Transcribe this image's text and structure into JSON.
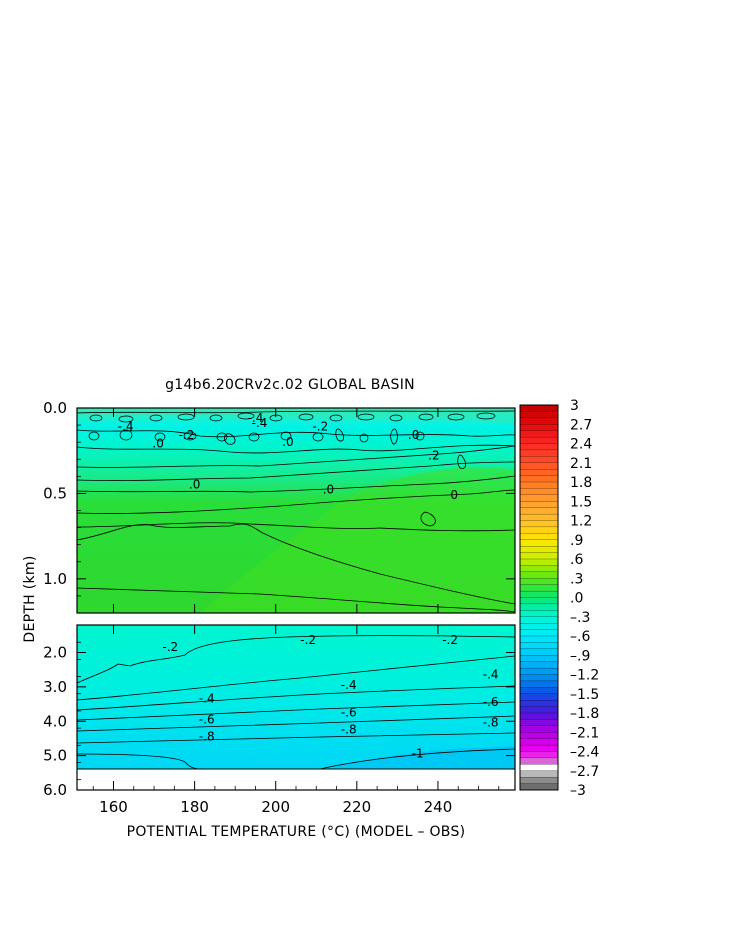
{
  "chart_data": {
    "type": "heatmap",
    "title": "g14b6.20CRv2c.02 GLOBAL BASIN",
    "xlabel": "POTENTIAL TEMPERATURE (°C) (MODEL – OBS)",
    "ylabel": "DEPTH (km)",
    "xlim": [
      151,
      259
    ],
    "x_ticks": [
      "160",
      "180",
      "200",
      "220",
      "240"
    ],
    "x_tick_values": [
      160,
      180,
      200,
      220,
      240
    ],
    "upper_panel": {
      "ylim": [
        0.0,
        1.2
      ],
      "y_ticks": [
        "0.0",
        "0.5",
        "1.0"
      ],
      "y_tick_values": [
        0.0,
        0.5,
        1.0
      ]
    },
    "lower_panel": {
      "ylim": [
        1.2,
        6.0
      ],
      "y_ticks": [
        "2.0",
        "3.0",
        "4.0",
        "5.0",
        "6.0"
      ],
      "y_tick_values": [
        2.0,
        3.0,
        4.0,
        5.0,
        6.0
      ]
    },
    "colorbar": {
      "min": -3,
      "max": 3,
      "interval": 0.1,
      "labels": [
        "3",
        "2.7",
        "2.4",
        "2.1",
        "1.8",
        "1.5",
        "1.2",
        ".9",
        ".6",
        ".3",
        ".0",
        "–.3",
        "–.6",
        "–.9",
        "–1.2",
        "–1.5",
        "–1.8",
        "–2.1",
        "–2.4",
        "–2.7",
        "–3"
      ],
      "label_values": [
        3,
        2.7,
        2.4,
        2.1,
        1.8,
        1.5,
        1.2,
        0.9,
        0.6,
        0.3,
        0.0,
        -0.3,
        -0.6,
        -0.9,
        -1.2,
        -1.5,
        -1.8,
        -2.1,
        -2.4,
        -2.7,
        -3
      ]
    },
    "contour_labels": [
      {
        "text": "-.4",
        "x": 195,
        "y": 0.07
      },
      {
        "text": "-.4",
        "x": 163,
        "y": 0.12
      },
      {
        "text": "-.4",
        "x": 196,
        "y": 0.1
      },
      {
        "text": "-.2",
        "x": 211,
        "y": 0.12
      },
      {
        "text": "-.2",
        "x": 178,
        "y": 0.17
      },
      {
        "text": ".0",
        "x": 171,
        "y": 0.22
      },
      {
        "text": ".0",
        "x": 203,
        "y": 0.21
      },
      {
        "text": ".0",
        "x": 234,
        "y": 0.17
      },
      {
        "text": ".2",
        "x": 239,
        "y": 0.29
      },
      {
        "text": ".0",
        "x": 180,
        "y": 0.46
      },
      {
        "text": ".0",
        "x": 213,
        "y": 0.49
      },
      {
        "text": "0",
        "x": 244,
        "y": 0.52
      },
      {
        "text": "-.2",
        "x": 174,
        "y": 1.9
      },
      {
        "text": "-.2",
        "x": 208,
        "y": 1.7
      },
      {
        "text": "-.2",
        "x": 243,
        "y": 1.7
      },
      {
        "text": "-.4",
        "x": 183,
        "y": 3.4
      },
      {
        "text": "-.4",
        "x": 218,
        "y": 3.0
      },
      {
        "text": "-.4",
        "x": 253,
        "y": 2.7
      },
      {
        "text": "-.6",
        "x": 183,
        "y": 4.0
      },
      {
        "text": "-.6",
        "x": 218,
        "y": 3.8
      },
      {
        "text": "-.6",
        "x": 253,
        "y": 3.5
      },
      {
        "text": "-.8",
        "x": 183,
        "y": 4.5
      },
      {
        "text": "-.8",
        "x": 218,
        "y": 4.3
      },
      {
        "text": "-.8",
        "x": 253,
        "y": 4.1
      },
      {
        "text": "-1",
        "x": 235,
        "y": 5.0
      }
    ]
  }
}
